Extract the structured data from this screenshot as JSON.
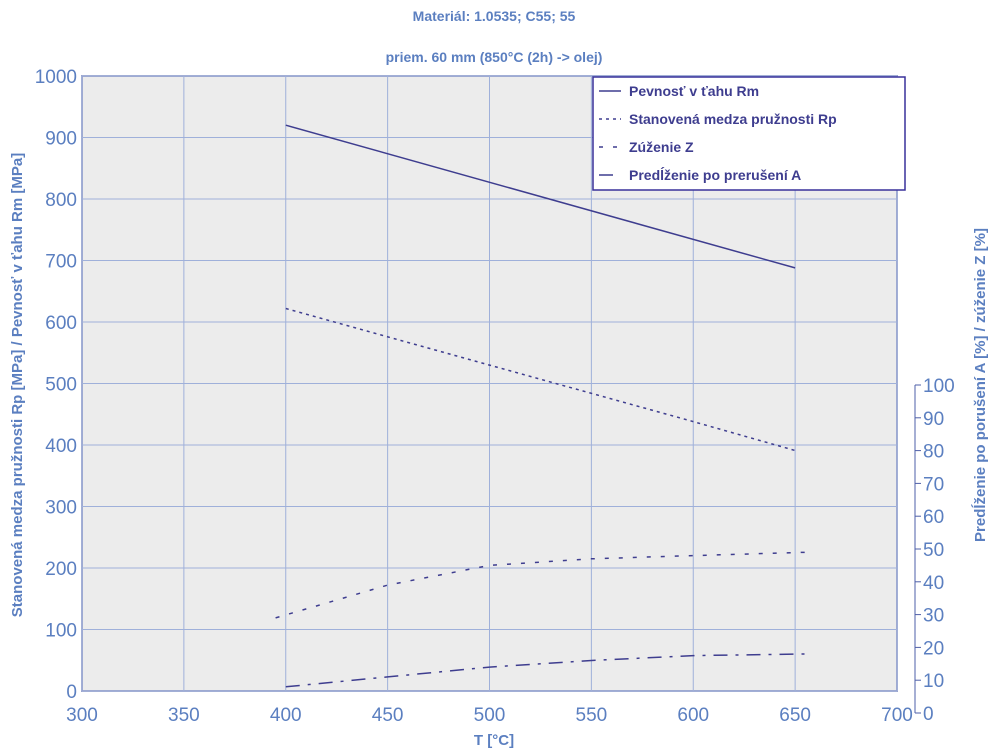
{
  "colors": {
    "text": "#5b7fc0",
    "series": "#3e3d8f",
    "plot_bg": "#ececec",
    "grid": "#9fb0da",
    "frame": "#4e5fa8",
    "legend_border": "#38309a"
  },
  "chart_data": {
    "type": "line",
    "title": "Materiál: 1.0535; C55; 55",
    "subtitle": "priem. 60 mm (850°C (2h) -> olej)",
    "xlabel": "T [°C]",
    "ylabel": "Stanovená medza pružnosti Rp [MPa] / Pevnosť v ťahu Rm [MPa]",
    "y2label": "Predĺženie po porušení A [%] / zúženie Z [%]",
    "xlim": [
      300,
      700
    ],
    "ylim": [
      0,
      1000
    ],
    "y2lim": [
      0,
      100
    ],
    "x_ticks": [
      "300",
      "350",
      "400",
      "450",
      "500",
      "550",
      "600",
      "650",
      "700"
    ],
    "y_ticks": [
      "0",
      "100",
      "200",
      "300",
      "400",
      "500",
      "600",
      "700",
      "800",
      "900",
      "1000"
    ],
    "y2_ticks": [
      "0",
      "10",
      "20",
      "30",
      "40",
      "50",
      "60",
      "70",
      "80",
      "90",
      "100"
    ],
    "grid": true,
    "legend_position": "top-right",
    "series": [
      {
        "name": "Pevnosť v ťahu Rm",
        "axis": "left",
        "style": "solid",
        "points": [
          [
            400,
            920
          ],
          [
            650,
            688
          ]
        ]
      },
      {
        "name": "Stanovená medza pružnosti Rp",
        "axis": "left",
        "style": "dotted",
        "points": [
          [
            400,
            622
          ],
          [
            500,
            530
          ],
          [
            600,
            438
          ],
          [
            650,
            391
          ]
        ]
      },
      {
        "name": "Zúženie Z",
        "axis": "right",
        "style": "dashed",
        "points": [
          [
            395,
            29
          ],
          [
            450,
            39
          ],
          [
            500,
            45
          ],
          [
            550,
            47
          ],
          [
            600,
            48
          ],
          [
            655,
            49
          ]
        ]
      },
      {
        "name": "Predĺženie po prerušení A",
        "axis": "right",
        "style": "dashdot",
        "points": [
          [
            400,
            8
          ],
          [
            450,
            11
          ],
          [
            500,
            14
          ],
          [
            550,
            16
          ],
          [
            600,
            17.5
          ],
          [
            655,
            18
          ]
        ]
      }
    ]
  }
}
